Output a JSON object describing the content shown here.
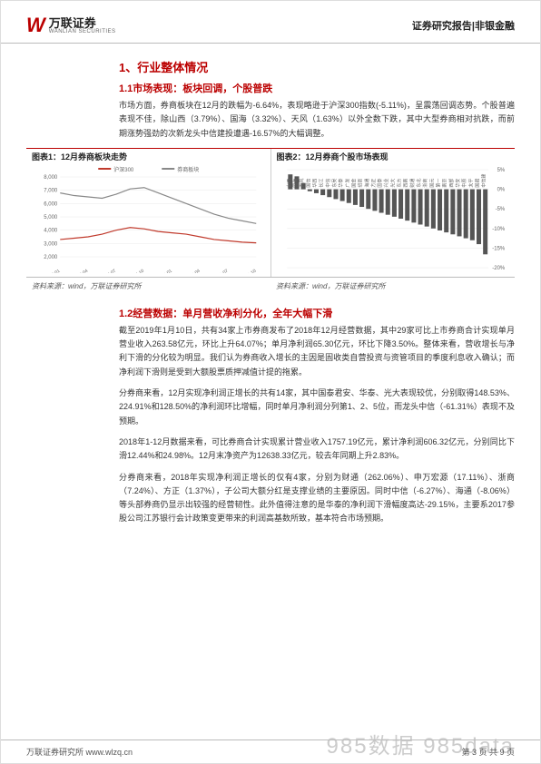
{
  "header": {
    "logo_cn": "万联证券",
    "logo_en": "WANLIAN SECURITIES",
    "right": "证券研究报告|非银金融"
  },
  "section1": {
    "title": "1、行业整体情况",
    "sub1": {
      "title": "1.1市场表现：板块回调，个股普跌",
      "para": "市场方面，券商板块在12月的跌幅为-6.64%，表现略逊于沪深300指数(-5.11%)，呈震荡回调态势。个股普遍表现不佳，除山西（3.79%）、国海（3.32%）、天风（1.63%）以外全数下跌，其中大型券商相对抗跌，而前期涨势强劲的次新龙头中信建投遭遇-16.57%的大幅调整。"
    }
  },
  "chart1": {
    "title": "图表1：12月券商板块走势",
    "type": "line",
    "legend": [
      "沪深300",
      "券商板块"
    ],
    "legend_colors": [
      "#c0392b",
      "#888888"
    ],
    "x_labels": [
      "2017-01",
      "2017-04",
      "2017-07",
      "2017-10",
      "2018-01",
      "2018-04",
      "2018-07",
      "2018-10"
    ],
    "ylim": [
      2000,
      8000
    ],
    "ytick_step": 1000,
    "series": [
      {
        "name": "沪深300",
        "color": "#c0392b",
        "width": 1.2,
        "values": [
          3300,
          3400,
          3500,
          3700,
          4000,
          4200,
          4100,
          3900,
          3800,
          3700,
          3500,
          3300,
          3200,
          3100,
          3050
        ]
      },
      {
        "name": "券商板块",
        "color": "#888888",
        "width": 1.2,
        "values": [
          6800,
          6600,
          6500,
          6400,
          6700,
          7100,
          7200,
          6800,
          6400,
          6000,
          5600,
          5200,
          4900,
          4700,
          4500
        ]
      }
    ],
    "background": "#ffffff",
    "grid_color": "#e8e8e8",
    "label_fontsize": 6
  },
  "chart2": {
    "title": "图表2：12月券商个股市场表现",
    "type": "bar",
    "ylim": [
      -20,
      5
    ],
    "ytick_labels": [
      "5%",
      "0%",
      "-5%",
      "-10%",
      "-15%",
      "-20%"
    ],
    "bar_color": "#555555",
    "stock_labels": [
      "山西",
      "国海",
      "天风",
      "国信",
      "华西",
      "长江",
      "中信",
      "东吴",
      "华泰",
      "广发",
      "国金",
      "招商",
      "海通",
      "方正",
      "国泰",
      "兴业",
      "光大",
      "东方",
      "西南",
      "财通",
      "东北",
      "浙商",
      "国元",
      "第一",
      "南京",
      "西部",
      "华安",
      "中原",
      "太平",
      "国君",
      "中信建"
    ],
    "values": [
      3.8,
      3.3,
      1.6,
      -0.5,
      -1,
      -1.5,
      -2,
      -2.5,
      -3,
      -3.5,
      -4,
      -4.5,
      -5,
      -5.5,
      -6,
      -6.5,
      -7,
      -7.5,
      -8,
      -8.5,
      -9,
      -9.5,
      -10,
      -10.5,
      -11,
      -11.5,
      -12,
      -12.5,
      -13,
      -14,
      -16.6
    ],
    "background": "#ffffff",
    "grid_color": "#e8e8e8",
    "label_fontsize": 5
  },
  "source": "资料来源：wind，万联证券研究所",
  "section2": {
    "title": "1.2经营数据：单月营收净利分化，全年大幅下滑",
    "p1": "截至2019年1月10日，共有34家上市券商发布了2018年12月经营数据，其中29家可比上市券商合计实现单月营业收入263.58亿元，环比上升64.07%；单月净利润65.30亿元，环比下降3.50%。整体来看，营收增长与净利下滑的分化较为明显。我们认为券商收入增长的主因是固收类自营投资与资管项目的季度利息收入确认；而净利润下滑则是受到大额股票质押减值计提的拖累。",
    "p2": "分券商来看，12月实现净利润正增长的共有14家，其中国泰君安、华泰、光大表现较优，分别取得148.53%、224.91%和128.50%的净利润环比增幅，同时单月净利润分列第1、2、5位，而龙头中信（-61.31%）表现不及预期。",
    "p3": "2018年1-12月数据来看，可比券商合计实现累计营业收入1757.19亿元，累计净利润606.32亿元，分别同比下滑12.44%和24.98%。12月末净资产为12638.33亿元，较去年同期上升2.83%。",
    "p4": "分券商来看，2018年实现净利润正增长的仅有4家，分别为财通（262.06%）、申万宏源（17.11%）、浙商（7.24%）、方正（1.37%），子公司大额分红是支撑业绩的主要原因。同时中信（-6.27%）、海通（-8.06%）等头部券商仍显示出较强的经营韧性。此外值得注意的是华泰的净利润下滑幅度高达-29.15%，主要系2017参股公司江苏银行会计政策变更带来的利润高基数所致，基本符合市场预期。"
  },
  "footer": {
    "left": "万联证券研究所  www.wlzq.cn",
    "right_page": "第 3 页 共 9 页"
  },
  "watermark": "985数据  985data"
}
